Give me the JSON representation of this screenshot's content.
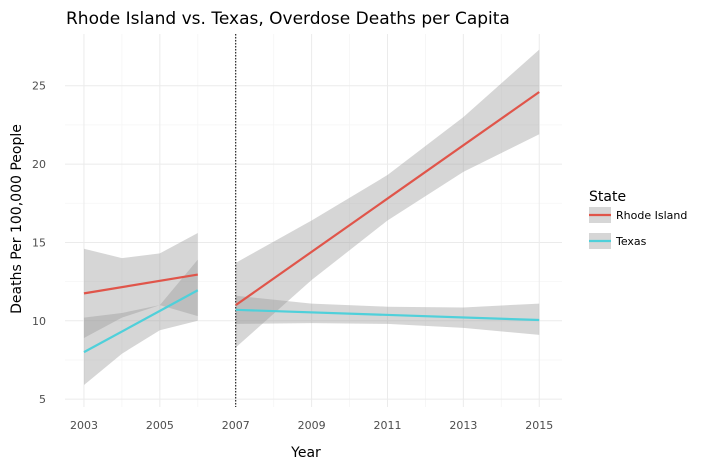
{
  "chart_data": {
    "type": "line",
    "title": "Rhode Island vs. Texas, Overdose Deaths per Capita",
    "xlabel": "Year",
    "ylabel": "Deaths Per 100,000 People",
    "xlim": [
      2002.5,
      2015.6
    ],
    "ylim": [
      4.5,
      28.3
    ],
    "x_ticks": [
      2003,
      2005,
      2007,
      2009,
      2011,
      2013,
      2015
    ],
    "x_tick_labels": [
      "2003",
      "2005",
      "2007",
      "2009",
      "2011",
      "2013",
      "2015"
    ],
    "y_ticks": [
      5,
      10,
      15,
      20,
      25
    ],
    "y_tick_labels": [
      "5",
      "10",
      "15",
      "20",
      "25"
    ],
    "grid": true,
    "vline": {
      "x": 2007,
      "style": "dotted",
      "color": "#000000"
    },
    "legend": {
      "title": "State",
      "placement": "right",
      "entries": [
        "Rhode Island",
        "Texas"
      ]
    },
    "series": [
      {
        "name": "Rhode Island",
        "color": "#e0554a",
        "segments": [
          {
            "x": [
              2003,
              2006
            ],
            "y": [
              11.75,
              12.95
            ],
            "band_x": [
              2003,
              2004,
              2005,
              2006
            ],
            "band_lower": [
              8.9,
              10.2,
              11.0,
              10.3
            ],
            "band_upper": [
              14.6,
              14.0,
              14.3,
              15.6
            ]
          },
          {
            "x": [
              2007,
              2015
            ],
            "y": [
              11.0,
              24.6
            ],
            "band_x": [
              2007,
              2009,
              2011,
              2013,
              2015
            ],
            "band_lower": [
              8.3,
              12.6,
              16.4,
              19.5,
              21.9
            ],
            "band_upper": [
              13.7,
              16.4,
              19.3,
              23.0,
              27.3
            ]
          }
        ]
      },
      {
        "name": "Texas",
        "color": "#4fd0da",
        "segments": [
          {
            "x": [
              2003,
              2006
            ],
            "y": [
              8.0,
              11.95
            ],
            "band_x": [
              2003,
              2004,
              2005,
              2006
            ],
            "band_lower": [
              5.9,
              7.9,
              9.4,
              10.0
            ],
            "band_upper": [
              10.2,
              10.5,
              11.0,
              13.9
            ]
          },
          {
            "x": [
              2007,
              2015
            ],
            "y": [
              10.7,
              10.05
            ],
            "band_x": [
              2007,
              2009,
              2011,
              2013,
              2015
            ],
            "band_lower": [
              9.8,
              9.85,
              9.8,
              9.55,
              9.1
            ],
            "band_upper": [
              11.6,
              11.1,
              10.9,
              10.85,
              11.1
            ]
          }
        ]
      }
    ]
  }
}
